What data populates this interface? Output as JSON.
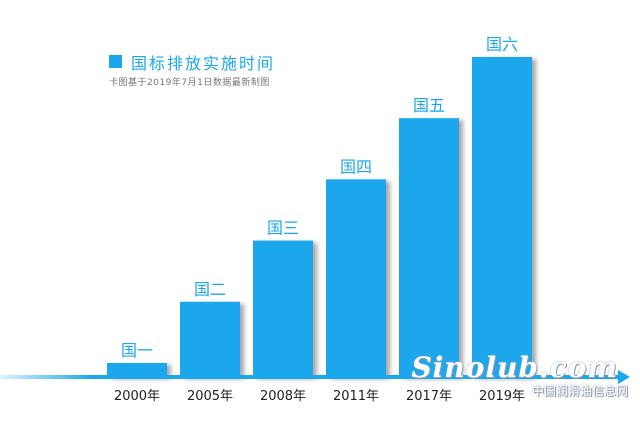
{
  "legend": {
    "title": "国标排放实施时间",
    "subtitle": "卡图基于2019年7月1日数据最新制图",
    "color": "#1aa7ec"
  },
  "colors": {
    "bar": "#1aa7ec",
    "axis": "#1aa7ec",
    "label": "#1aa7ec",
    "tick_text": "#222222"
  },
  "chart_data": {
    "type": "bar",
    "categories": [
      "2000年",
      "2005年",
      "2008年",
      "2011年",
      "2017年",
      "2019年"
    ],
    "values": [
      1,
      2,
      3,
      4,
      5,
      6
    ],
    "value_labels": [
      "国一",
      "国二",
      "国三",
      "国四",
      "国五",
      "国六"
    ],
    "title": "国标排放实施时间",
    "subtitle": "卡图基于2019年7月1日数据最新制图",
    "xlabel": "",
    "ylabel": "",
    "ylim": [
      0,
      6
    ],
    "grid": false,
    "legend": "top-left"
  },
  "watermark": {
    "logo": "Sinolub.com",
    "text": "中国润滑油信息网"
  }
}
